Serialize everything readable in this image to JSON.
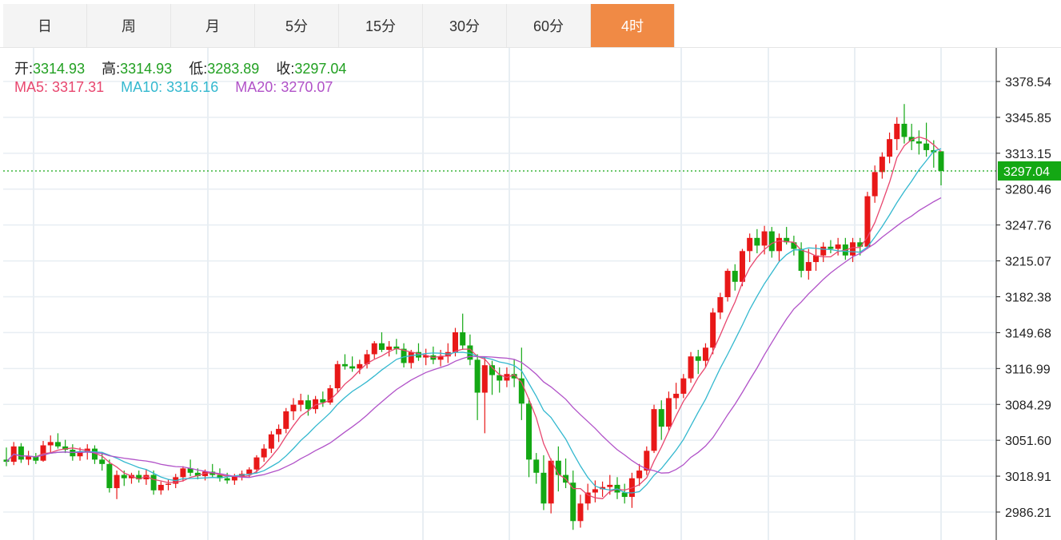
{
  "tabs": [
    {
      "label": "日",
      "active": false
    },
    {
      "label": "周",
      "active": false
    },
    {
      "label": "月",
      "active": false
    },
    {
      "label": "5分",
      "active": false
    },
    {
      "label": "15分",
      "active": false
    },
    {
      "label": "30分",
      "active": false
    },
    {
      "label": "60分",
      "active": false
    },
    {
      "label": "4时",
      "active": true
    }
  ],
  "info": {
    "open_label": "开:",
    "open": "3314.93",
    "high_label": "高:",
    "high": "3314.93",
    "low_label": "低:",
    "low": "3283.89",
    "close_label": "收:",
    "close": "3297.04",
    "ma5_label": "MA5:",
    "ma5": "3317.31",
    "ma10_label": "MA10:",
    "ma10": "3316.16",
    "ma20_label": "MA20:",
    "ma20": "3270.07"
  },
  "colors": {
    "up": "#e81818",
    "down": "#14a814",
    "ma5": "#e8476f",
    "ma10": "#33b8cf",
    "ma20": "#b152c8",
    "accent_tab": "#f08a45",
    "last_price_bg": "#14a814"
  },
  "chart_data": {
    "type": "candlestick",
    "last_price": "3297.04",
    "y_ticks": [
      "3378.54",
      "3345.85",
      "3313.15",
      "3280.46",
      "3247.76",
      "3215.07",
      "3182.38",
      "3149.68",
      "3116.99",
      "3084.29",
      "3051.60",
      "3018.91",
      "2986.21"
    ],
    "ylim": [
      2965,
      3400
    ],
    "grid": true,
    "candles": [
      [
        3034,
        3045,
        3028,
        3032
      ],
      [
        3032,
        3050,
        3029,
        3046
      ],
      [
        3046,
        3049,
        3031,
        3034
      ],
      [
        3034,
        3042,
        3029,
        3037
      ],
      [
        3037,
        3040,
        3030,
        3033
      ],
      [
        3033,
        3051,
        3032,
        3047
      ],
      [
        3047,
        3056,
        3040,
        3050
      ],
      [
        3050,
        3058,
        3044,
        3046
      ],
      [
        3046,
        3052,
        3040,
        3043
      ],
      [
        3043,
        3048,
        3033,
        3037
      ],
      [
        3037,
        3045,
        3033,
        3041
      ],
      [
        3041,
        3048,
        3034,
        3044
      ],
      [
        3044,
        3047,
        3030,
        3034
      ],
      [
        3034,
        3041,
        3024,
        3030
      ],
      [
        3030,
        3034,
        3004,
        3008
      ],
      [
        3008,
        3024,
        2998,
        3020
      ],
      [
        3020,
        3024,
        3010,
        3017
      ],
      [
        3017,
        3022,
        3012,
        3020
      ],
      [
        3020,
        3024,
        3013,
        3016
      ],
      [
        3016,
        3025,
        3011,
        3020
      ],
      [
        3020,
        3024,
        3002,
        3006
      ],
      [
        3006,
        3014,
        3002,
        3011
      ],
      [
        3011,
        3016,
        3006,
        3012
      ],
      [
        3012,
        3021,
        3008,
        3018
      ],
      [
        3018,
        3028,
        3014,
        3026
      ],
      [
        3026,
        3034,
        3019,
        3022
      ],
      [
        3022,
        3026,
        3016,
        3019
      ],
      [
        3019,
        3025,
        3015,
        3023
      ],
      [
        3023,
        3030,
        3018,
        3020
      ],
      [
        3020,
        3026,
        3014,
        3017
      ],
      [
        3017,
        3022,
        3012,
        3015
      ],
      [
        3015,
        3021,
        3011,
        3019
      ],
      [
        3019,
        3024,
        3015,
        3021
      ],
      [
        3021,
        3027,
        3018,
        3025
      ],
      [
        3025,
        3038,
        3022,
        3036
      ],
      [
        3036,
        3048,
        3032,
        3044
      ],
      [
        3044,
        3060,
        3040,
        3057
      ],
      [
        3057,
        3066,
        3050,
        3062
      ],
      [
        3062,
        3081,
        3058,
        3078
      ],
      [
        3078,
        3090,
        3070,
        3084
      ],
      [
        3084,
        3094,
        3078,
        3088
      ],
      [
        3088,
        3093,
        3074,
        3080
      ],
      [
        3080,
        3092,
        3076,
        3089
      ],
      [
        3089,
        3096,
        3082,
        3086
      ],
      [
        3086,
        3102,
        3084,
        3099
      ],
      [
        3099,
        3124,
        3095,
        3121
      ],
      [
        3121,
        3130,
        3116,
        3119
      ],
      [
        3119,
        3128,
        3114,
        3117
      ],
      [
        3117,
        3125,
        3112,
        3121
      ],
      [
        3121,
        3134,
        3117,
        3130
      ],
      [
        3130,
        3142,
        3126,
        3140
      ],
      [
        3140,
        3150,
        3132,
        3134
      ],
      [
        3134,
        3142,
        3128,
        3137
      ],
      [
        3137,
        3144,
        3130,
        3135
      ],
      [
        3135,
        3140,
        3118,
        3122
      ],
      [
        3122,
        3134,
        3117,
        3132
      ],
      [
        3132,
        3140,
        3124,
        3127
      ],
      [
        3127,
        3135,
        3120,
        3129
      ],
      [
        3129,
        3137,
        3121,
        3125
      ],
      [
        3125,
        3134,
        3119,
        3128
      ],
      [
        3128,
        3140,
        3122,
        3132
      ],
      [
        3132,
        3154,
        3128,
        3150
      ],
      [
        3150,
        3167,
        3134,
        3138
      ],
      [
        3138,
        3148,
        3120,
        3125
      ],
      [
        3125,
        3130,
        3070,
        3095
      ],
      [
        3095,
        3128,
        3058,
        3120
      ],
      [
        3120,
        3124,
        3093,
        3111
      ],
      [
        3111,
        3118,
        3095,
        3106
      ],
      [
        3106,
        3118,
        3100,
        3112
      ],
      [
        3112,
        3125,
        3100,
        3108
      ],
      [
        3108,
        3136,
        3070,
        3085
      ],
      [
        3085,
        3090,
        3018,
        3034
      ],
      [
        3034,
        3040,
        3012,
        3022
      ],
      [
        3022,
        3038,
        2988,
        2994
      ],
      [
        2994,
        3035,
        2985,
        3033
      ],
      [
        3033,
        3046,
        3005,
        3020
      ],
      [
        3020,
        3035,
        3008,
        3013
      ],
      [
        3013,
        3024,
        2970,
        2978
      ],
      [
        2978,
        3002,
        2972,
        2994
      ],
      [
        2994,
        3012,
        2988,
        3004
      ],
      [
        3004,
        3015,
        2995,
        3007
      ],
      [
        3007,
        3014,
        3000,
        3009
      ],
      [
        3009,
        3020,
        3002,
        3011
      ],
      [
        3011,
        3018,
        2998,
        3004
      ],
      [
        3004,
        3012,
        2994,
        3000
      ],
      [
        3000,
        3022,
        2990,
        3017
      ],
      [
        3017,
        3030,
        3010,
        3024
      ],
      [
        3024,
        3046,
        3020,
        3042
      ],
      [
        3042,
        3084,
        3040,
        3080
      ],
      [
        3080,
        3088,
        3052,
        3064
      ],
      [
        3064,
        3096,
        3060,
        3090
      ],
      [
        3090,
        3104,
        3080,
        3094
      ],
      [
        3094,
        3112,
        3090,
        3108
      ],
      [
        3108,
        3132,
        3104,
        3128
      ],
      [
        3128,
        3134,
        3112,
        3124
      ],
      [
        3124,
        3140,
        3118,
        3136
      ],
      [
        3136,
        3172,
        3130,
        3168
      ],
      [
        3168,
        3186,
        3162,
        3182
      ],
      [
        3182,
        3208,
        3178,
        3206
      ],
      [
        3206,
        3212,
        3188,
        3196
      ],
      [
        3196,
        3226,
        3192,
        3224
      ],
      [
        3224,
        3240,
        3214,
        3236
      ],
      [
        3236,
        3244,
        3222,
        3229
      ],
      [
        3229,
        3247,
        3221,
        3242
      ],
      [
        3242,
        3246,
        3218,
        3224
      ],
      [
        3224,
        3240,
        3214,
        3236
      ],
      [
        3236,
        3246,
        3230,
        3232
      ],
      [
        3232,
        3238,
        3220,
        3226
      ],
      [
        3226,
        3232,
        3200,
        3206
      ],
      [
        3206,
        3226,
        3198,
        3214
      ],
      [
        3214,
        3230,
        3206,
        3220
      ],
      [
        3220,
        3232,
        3214,
        3228
      ],
      [
        3228,
        3234,
        3222,
        3226
      ],
      [
        3226,
        3236,
        3220,
        3230
      ],
      [
        3230,
        3236,
        3216,
        3220
      ],
      [
        3220,
        3236,
        3214,
        3232
      ],
      [
        3232,
        3236,
        3220,
        3228
      ],
      [
        3228,
        3278,
        3226,
        3274
      ],
      [
        3274,
        3302,
        3268,
        3296
      ],
      [
        3296,
        3314,
        3290,
        3310
      ],
      [
        3310,
        3332,
        3304,
        3326
      ],
      [
        3326,
        3346,
        3316,
        3340
      ],
      [
        3340,
        3358,
        3322,
        3328
      ],
      [
        3328,
        3340,
        3316,
        3324
      ],
      [
        3324,
        3334,
        3312,
        3322
      ],
      [
        3322,
        3341,
        3310,
        3316
      ],
      [
        3316,
        3325,
        3300,
        3314
      ],
      [
        3314.93,
        3314.93,
        3283.89,
        3297.04
      ]
    ]
  }
}
